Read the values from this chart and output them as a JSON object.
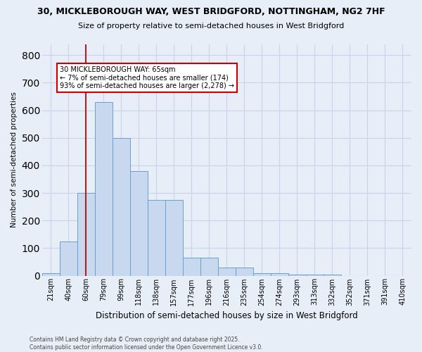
{
  "title_line1": "30, MICKLEBOROUGH WAY, WEST BRIDGFORD, NOTTINGHAM, NG2 7HF",
  "title_line2": "Size of property relative to semi-detached houses in West Bridgford",
  "xlabel": "Distribution of semi-detached houses by size in West Bridgford",
  "ylabel": "Number of semi-detached properties",
  "categories": [
    "21sqm",
    "40sqm",
    "60sqm",
    "79sqm",
    "99sqm",
    "118sqm",
    "138sqm",
    "157sqm",
    "177sqm",
    "196sqm",
    "216sqm",
    "235sqm",
    "254sqm",
    "274sqm",
    "293sqm",
    "313sqm",
    "332sqm",
    "352sqm",
    "371sqm",
    "391sqm",
    "410sqm"
  ],
  "values": [
    10,
    125,
    300,
    630,
    500,
    380,
    275,
    275,
    65,
    65,
    30,
    30,
    10,
    10,
    5,
    5,
    3,
    0,
    0,
    0,
    0
  ],
  "bar_color": "#c8d8ee",
  "bar_edge_color": "#6aa0cc",
  "vline_x_index": 2,
  "vline_color": "#aa2222",
  "annotation_text": "30 MICKLEBOROUGH WAY: 65sqm\n← 7% of semi-detached houses are smaller (174)\n93% of semi-detached houses are larger (2,278) →",
  "annotation_box_color": "#ffffff",
  "annotation_box_edge": "#cc0000",
  "ylim": [
    0,
    840
  ],
  "yticks": [
    0,
    100,
    200,
    300,
    400,
    500,
    600,
    700,
    800
  ],
  "grid_color": "#c8d4e8",
  "bg_color": "#e8eef8",
  "footer": "Contains HM Land Registry data © Crown copyright and database right 2025.\nContains public sector information licensed under the Open Government Licence v3.0."
}
